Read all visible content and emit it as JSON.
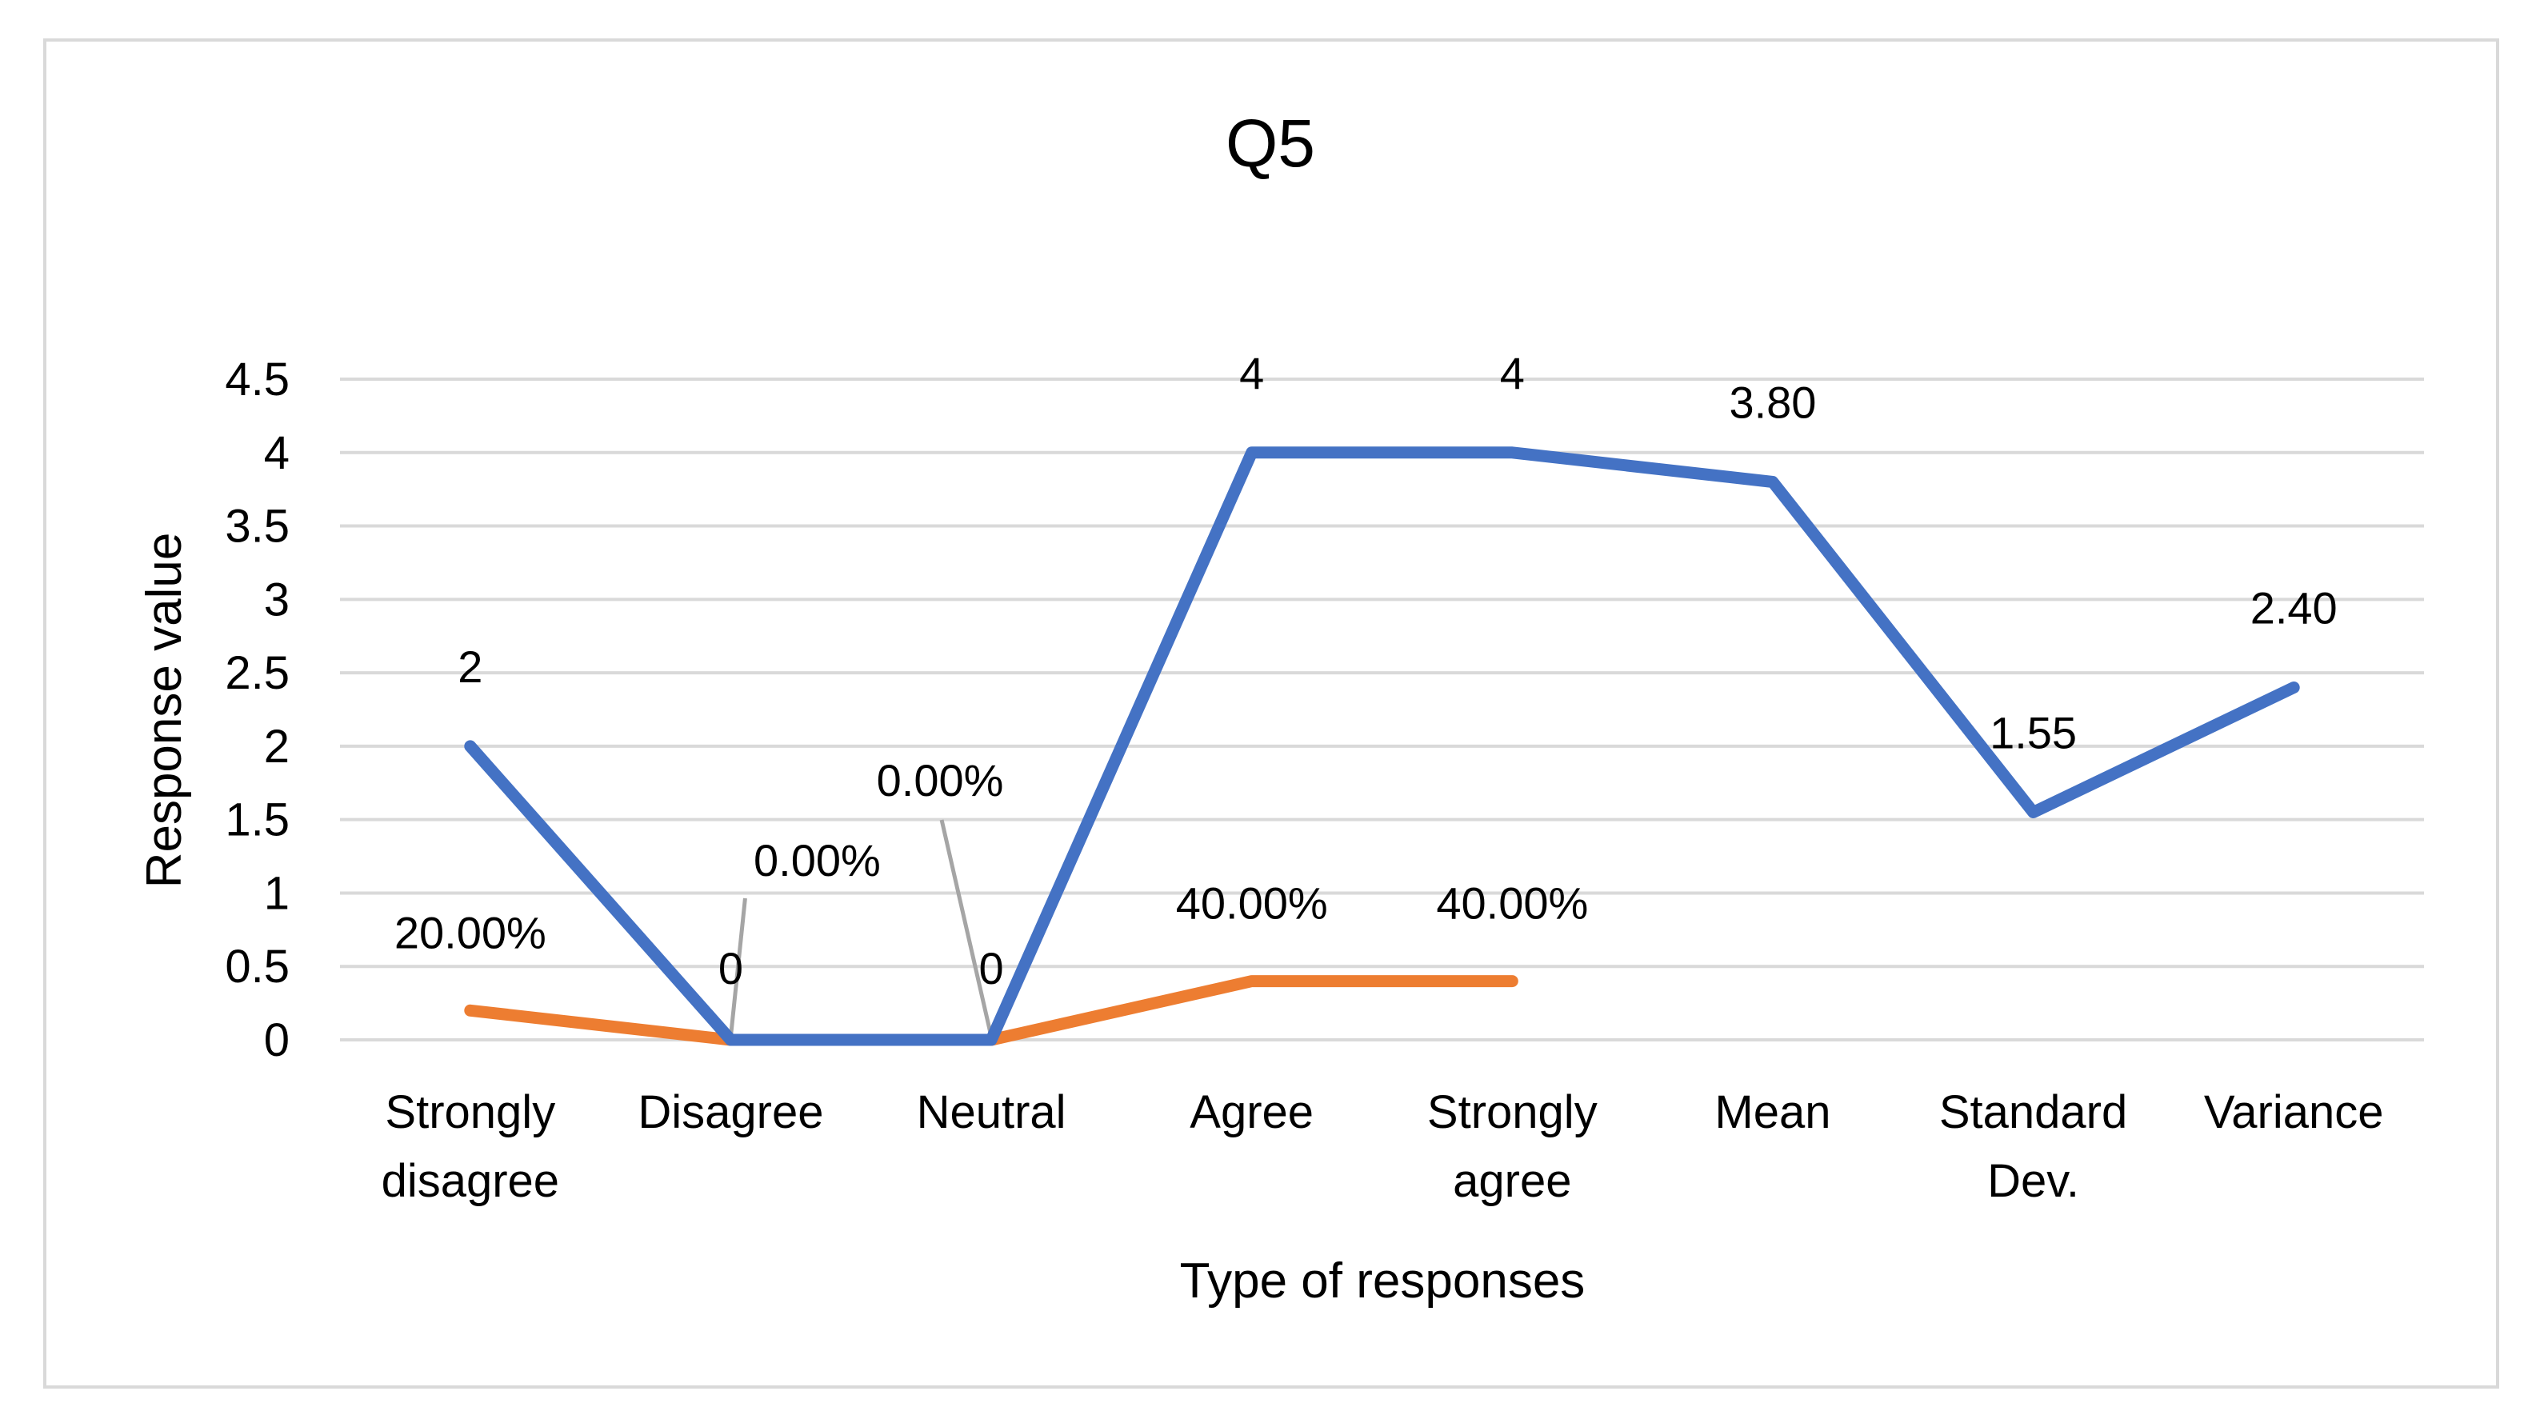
{
  "chart_data": {
    "type": "line",
    "title": "Q5",
    "xlabel": "Type of responses",
    "ylabel": "Response value",
    "ylim": [
      0,
      4.5
    ],
    "yticks": [
      "0",
      "0.5",
      "1",
      "1.5",
      "2",
      "2.5",
      "3",
      "3.5",
      "4",
      "4.5"
    ],
    "grid": true,
    "legend": "none",
    "categories": [
      [
        "Strongly",
        "disagree"
      ],
      [
        "Disagree"
      ],
      [
        "Neutral"
      ],
      [
        "Agree"
      ],
      [
        "Strongly",
        "agree"
      ],
      [
        "Mean"
      ],
      [
        "Standard",
        "Dev."
      ],
      [
        "Variance"
      ]
    ],
    "series": [
      {
        "color": "#4472c4",
        "values": [
          2,
          0,
          0,
          4,
          4,
          3.8,
          1.55,
          2.4
        ],
        "labels": [
          "2",
          "0",
          "0",
          "4",
          "4",
          "3.80",
          "1.55",
          "2.40"
        ]
      },
      {
        "color": "#ed7d31",
        "values": [
          0.2,
          0,
          0,
          0.4,
          0.4,
          null,
          null,
          null
        ],
        "labels": [
          "20.00%",
          "0.00%",
          "0.00%",
          "40.00%",
          "40.00%",
          "",
          "",
          ""
        ]
      }
    ],
    "gridline_color": "#d9d9d9",
    "leader_line_color": "#a5a5a5"
  }
}
